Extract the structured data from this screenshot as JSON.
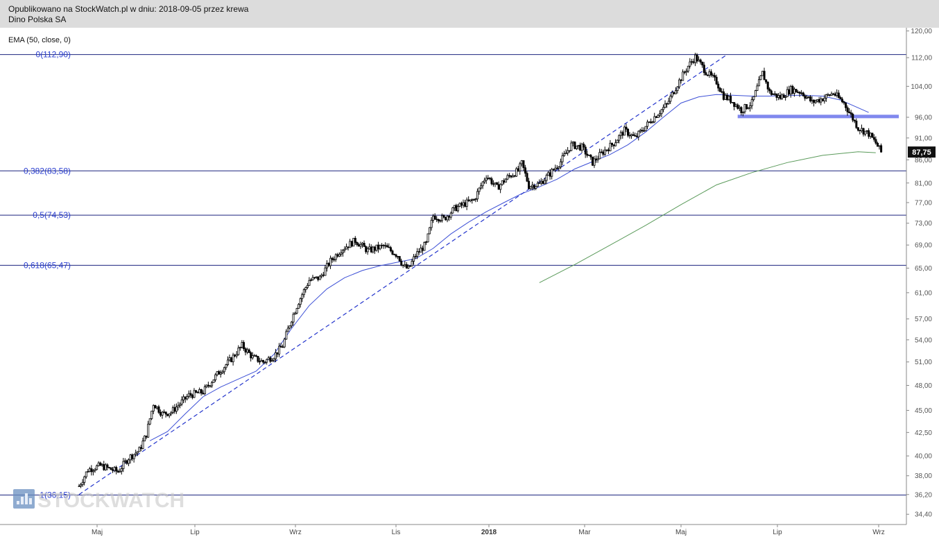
{
  "header": {
    "line1": "Opublikowano na StockWatch.pl w dniu: 2018-09-05 przez krewa",
    "line2": "Dino Polska SA"
  },
  "indicator_label": "EMA (50, close, 0)",
  "watermark": "STOCKWATCH",
  "colors": {
    "fib_line": "#1a237e",
    "fib_text": "#2b3fcf",
    "ema50": "#3c4fd6",
    "ema200": "#5a9a5a",
    "trend_line": "#2233cc",
    "support_band": "#8088ee",
    "candle": "#000000",
    "last_price_bg": "#111111"
  },
  "chart_data": {
    "type": "candlestick",
    "y_scale": "log",
    "ylim": [
      33.5,
      121
    ],
    "y_ticks": [
      "120,00",
      "112,00",
      "104,00",
      "96,00",
      "91,00",
      "86,00",
      "81,00",
      "77,00",
      "73,00",
      "69,00",
      "65,00",
      "61,00",
      "57,00",
      "54,00",
      "51,00",
      "48,00",
      "45,00",
      "42,50",
      "40,00",
      "38,00",
      "36,20",
      "34,40"
    ],
    "x_ticks": [
      {
        "label": "Maj",
        "bold": false
      },
      {
        "label": "Lip",
        "bold": false
      },
      {
        "label": "Wrz",
        "bold": false
      },
      {
        "label": "Lis",
        "bold": false
      },
      {
        "label": "2018",
        "bold": true
      },
      {
        "label": "Mar",
        "bold": false
      },
      {
        "label": "Maj",
        "bold": false
      },
      {
        "label": "Lip",
        "bold": false
      },
      {
        "label": "Wrz",
        "bold": false
      }
    ],
    "last_price": {
      "label": "87,75",
      "value": 87.75
    },
    "fibonacci": [
      {
        "label": "0(112,90)",
        "value": 112.9
      },
      {
        "label": "0,382(83,58)",
        "value": 83.58
      },
      {
        "label": "0,5(74,53)",
        "value": 74.53
      },
      {
        "label": "0,618(65,47)",
        "value": 65.47
      },
      {
        "label": "1(36,15)",
        "value": 36.15
      }
    ],
    "support_level": 96.2,
    "trend_line": [
      [
        0,
        36.2
      ],
      [
        366,
        112.9
      ]
    ],
    "anchors": [
      [
        0,
        37.0
      ],
      [
        5,
        38.6
      ],
      [
        12,
        39.0
      ],
      [
        22,
        38.4
      ],
      [
        28,
        39.8
      ],
      [
        34,
        40.6
      ],
      [
        38,
        42.3
      ],
      [
        42,
        45.8
      ],
      [
        47,
        44.6
      ],
      [
        52,
        44.8
      ],
      [
        62,
        46.8
      ],
      [
        70,
        47.2
      ],
      [
        78,
        49.4
      ],
      [
        86,
        51.4
      ],
      [
        92,
        53.2
      ],
      [
        98,
        51.6
      ],
      [
        104,
        51.0
      ],
      [
        110,
        51.8
      ],
      [
        115,
        53.2
      ],
      [
        120,
        57.0
      ],
      [
        124,
        59.6
      ],
      [
        130,
        63.0
      ],
      [
        136,
        63.4
      ],
      [
        142,
        66.2
      ],
      [
        148,
        68.2
      ],
      [
        156,
        69.8
      ],
      [
        163,
        68.0
      ],
      [
        172,
        68.8
      ],
      [
        180,
        67.2
      ],
      [
        183,
        65.4
      ],
      [
        186,
        64.8
      ],
      [
        190,
        67.2
      ],
      [
        196,
        69.2
      ],
      [
        200,
        74.4
      ],
      [
        206,
        73.8
      ],
      [
        212,
        75.8
      ],
      [
        218,
        76.8
      ],
      [
        223,
        77.5
      ],
      [
        230,
        82.6
      ],
      [
        236,
        80.0
      ],
      [
        242,
        82.2
      ],
      [
        248,
        83.6
      ],
      [
        250,
        85.2
      ],
      [
        254,
        80.4
      ],
      [
        260,
        80.8
      ],
      [
        266,
        83.0
      ],
      [
        272,
        85.6
      ],
      [
        278,
        89.4
      ],
      [
        284,
        88.8
      ],
      [
        290,
        85.4
      ],
      [
        296,
        87.8
      ],
      [
        302,
        89.8
      ],
      [
        308,
        92.8
      ],
      [
        314,
        91.0
      ],
      [
        320,
        93.8
      ],
      [
        326,
        96.6
      ],
      [
        332,
        99.2
      ],
      [
        338,
        104.6
      ],
      [
        344,
        109.6
      ],
      [
        348,
        112.2
      ],
      [
        354,
        108.0
      ],
      [
        360,
        105.2
      ],
      [
        364,
        101.4
      ],
      [
        368,
        100.4
      ],
      [
        374,
        97.8
      ],
      [
        380,
        99.6
      ],
      [
        386,
        107.6
      ],
      [
        390,
        102.4
      ],
      [
        396,
        101.0
      ],
      [
        402,
        103.2
      ],
      [
        408,
        102.4
      ],
      [
        414,
        99.8
      ],
      [
        420,
        100.8
      ],
      [
        426,
        102.2
      ],
      [
        432,
        99.6
      ],
      [
        435,
        97.2
      ],
      [
        440,
        93.4
      ],
      [
        446,
        92.0
      ],
      [
        450,
        89.8
      ],
      [
        453,
        87.75
      ]
    ],
    "ema50": [
      [
        40,
        41.6
      ],
      [
        50,
        42.6
      ],
      [
        60,
        44.6
      ],
      [
        70,
        46.6
      ],
      [
        80,
        47.8
      ],
      [
        90,
        48.8
      ],
      [
        100,
        49.8
      ],
      [
        110,
        52.0
      ],
      [
        120,
        55.6
      ],
      [
        130,
        59.0
      ],
      [
        140,
        61.6
      ],
      [
        150,
        63.4
      ],
      [
        160,
        64.6
      ],
      [
        170,
        65.4
      ],
      [
        180,
        66.0
      ],
      [
        190,
        66.6
      ],
      [
        200,
        68.4
      ],
      [
        210,
        71.0
      ],
      [
        220,
        73.2
      ],
      [
        230,
        75.2
      ],
      [
        240,
        77.0
      ],
      [
        250,
        78.8
      ],
      [
        260,
        80.2
      ],
      [
        270,
        81.8
      ],
      [
        280,
        84.0
      ],
      [
        290,
        85.6
      ],
      [
        300,
        87.2
      ],
      [
        310,
        89.4
      ],
      [
        320,
        92.4
      ],
      [
        330,
        96.0
      ],
      [
        340,
        99.6
      ],
      [
        350,
        101.2
      ],
      [
        360,
        101.8
      ],
      [
        370,
        101.6
      ],
      [
        380,
        101.4
      ],
      [
        390,
        101.4
      ],
      [
        400,
        101.6
      ],
      [
        410,
        101.6
      ],
      [
        420,
        101.4
      ],
      [
        430,
        100.4
      ],
      [
        440,
        98.4
      ],
      [
        446,
        97.2
      ]
    ],
    "ema200": [
      [
        260,
        62.6
      ],
      [
        280,
        65.6
      ],
      [
        300,
        69.0
      ],
      [
        320,
        72.6
      ],
      [
        340,
        76.6
      ],
      [
        360,
        80.6
      ],
      [
        380,
        83.2
      ],
      [
        400,
        85.4
      ],
      [
        420,
        87.0
      ],
      [
        440,
        87.8
      ],
      [
        450,
        87.6
      ]
    ]
  }
}
